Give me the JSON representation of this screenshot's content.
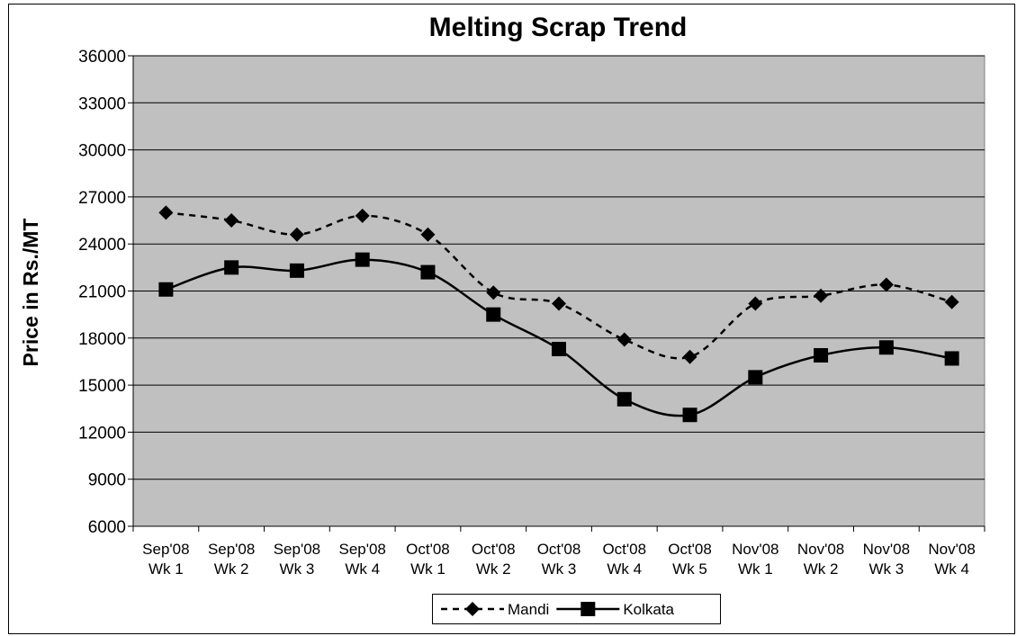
{
  "chart_data": {
    "type": "line",
    "title": "Melting Scrap Trend",
    "y_label": "Price in Rs./MT",
    "categories": [
      "Sep'08 Wk 1",
      "Sep'08 Wk 2",
      "Sep'08 Wk 3",
      "Sep'08 Wk 4",
      "Oct'08 Wk 1",
      "Oct'08 Wk 2",
      "Oct'08 Wk 3",
      "Oct'08 Wk 4",
      "Oct'08 Wk 5",
      "Nov'08 Wk 1",
      "Nov'08 Wk 2",
      "Nov'08 Wk 3",
      "Nov'08 Wk 4"
    ],
    "series": [
      {
        "name": "Mandi",
        "color": "#000000",
        "dash": true,
        "marker": "diamond",
        "values": [
          26000,
          25500,
          24600,
          25800,
          24600,
          20900,
          20200,
          17900,
          16800,
          20200,
          20700,
          21400,
          20300
        ]
      },
      {
        "name": "Kolkata",
        "color": "#000000",
        "dash": false,
        "marker": "square",
        "values": [
          21100,
          22500,
          22300,
          23000,
          22200,
          19500,
          17300,
          14100,
          13100,
          15500,
          16900,
          17400,
          16700
        ]
      }
    ],
    "ylim": [
      6000,
      36000
    ],
    "yticks": [
      6000,
      9000,
      12000,
      15000,
      18000,
      21000,
      24000,
      27000,
      30000,
      33000,
      36000
    ],
    "grid": true,
    "plot_background": "#c0c0c0",
    "legend": "bottom"
  }
}
